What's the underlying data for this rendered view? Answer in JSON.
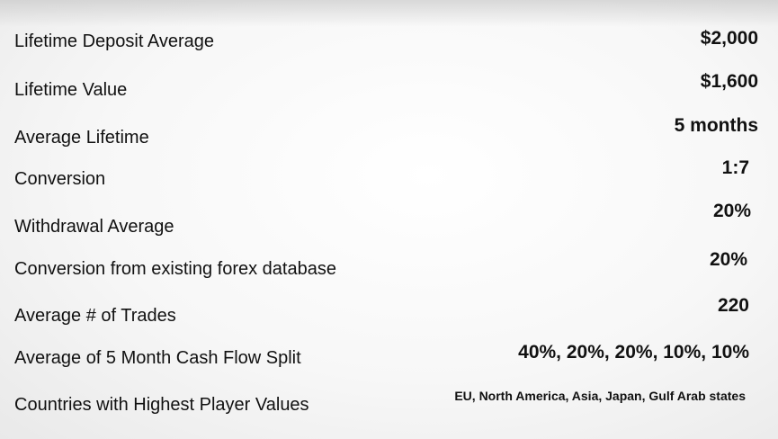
{
  "metrics": [
    {
      "label": "Lifetime Deposit Average",
      "value": "$2,000"
    },
    {
      "label": "Lifetime Value",
      "value": "$1,600"
    },
    {
      "label": "Average Lifetime",
      "value": "5 months"
    },
    {
      "label": "Conversion",
      "value": "1:7"
    },
    {
      "label": "Withdrawal Average",
      "value": "20%"
    },
    {
      "label": "Conversion from existing forex database",
      "value": "20%"
    },
    {
      "label": "Average # of Trades",
      "value": "220"
    },
    {
      "label": "Average of 5 Month Cash Flow Split",
      "value": "40%, 20%, 20%, 10%, 10%"
    },
    {
      "label": "Countries with Highest Player Values",
      "value": "EU, North America, Asia, Japan, Gulf Arab states"
    }
  ]
}
